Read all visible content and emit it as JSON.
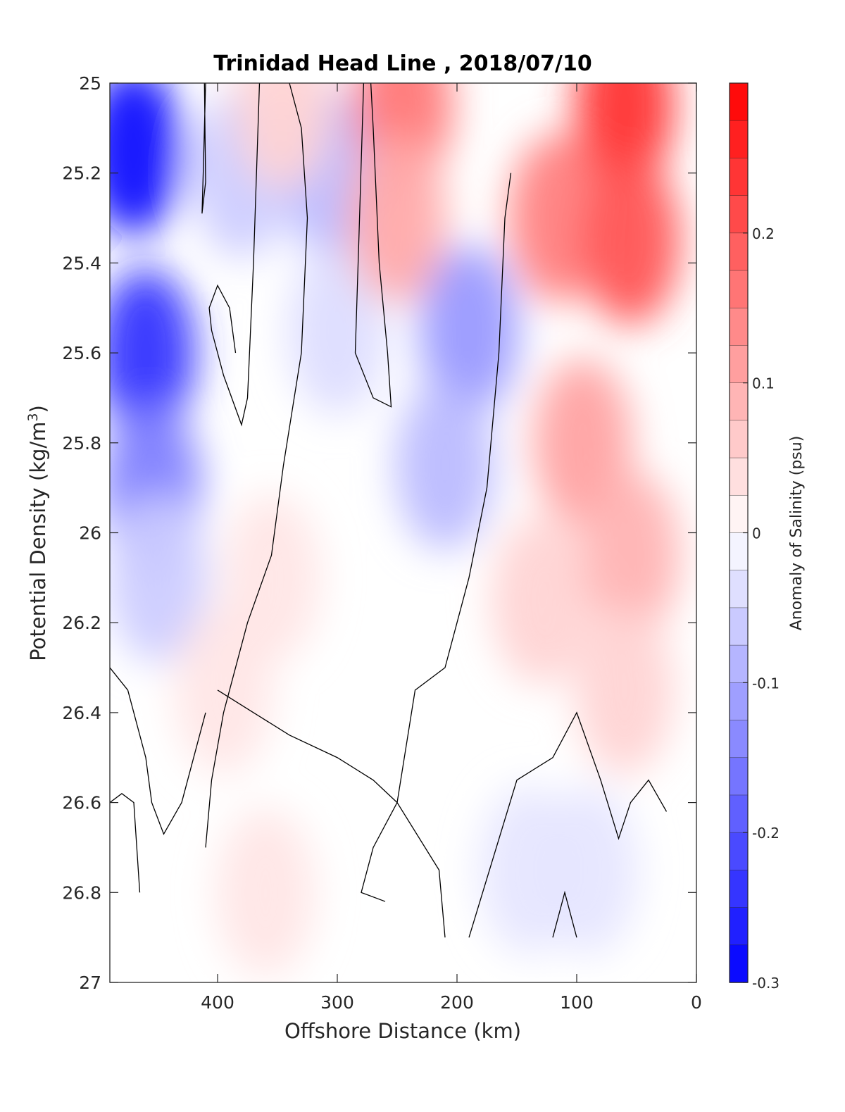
{
  "chart_data": {
    "type": "heatmap",
    "subtype": "filled-contour",
    "title": "Trinidad Head Line , 2018/07/10",
    "xlabel": "Offshore Distance (km)",
    "ylabel": "Potential Density (kg/m",
    "ylabel_sup": "3",
    "ylabel_close": ")",
    "colorbar_label": "Anomaly of Salinity (psu)",
    "xlim": [
      490,
      0
    ],
    "ylim": [
      25,
      27
    ],
    "y_inverted": true,
    "x_reversed": true,
    "xticks": [
      400,
      300,
      200,
      100,
      0
    ],
    "xtick_labels": [
      "400",
      "300",
      "200",
      "100",
      "0"
    ],
    "yticks": [
      25,
      25.2,
      25.4,
      25.6,
      25.8,
      26,
      26.2,
      26.4,
      26.6,
      26.8,
      27
    ],
    "ytick_labels": [
      "25",
      "25.2",
      "25.4",
      "25.6",
      "25.8",
      "26",
      "26.2",
      "26.4",
      "26.6",
      "26.8",
      "27"
    ],
    "colorbar": {
      "clim": [
        -0.3,
        0.3
      ],
      "ticks": [
        0.2,
        0.1,
        0,
        -0.1,
        -0.2,
        -0.3
      ],
      "tick_labels": [
        "0.2",
        "0.1",
        "0",
        "-0.1",
        "-0.2",
        "-0.3"
      ],
      "levels": 24,
      "colormap": "blue-white-red",
      "negative_color": "#0000ff",
      "positive_color": "#ff0000",
      "zero_color": "#ffffff"
    },
    "grid": false,
    "field": [
      {
        "x": 470,
        "y": 25.15,
        "value": -0.28
      },
      {
        "x": 460,
        "y": 25.6,
        "value": -0.24
      },
      {
        "x": 455,
        "y": 25.9,
        "value": -0.15
      },
      {
        "x": 450,
        "y": 26.1,
        "value": -0.06
      },
      {
        "x": 380,
        "y": 25.2,
        "value": -0.06
      },
      {
        "x": 305,
        "y": 25.2,
        "value": -0.08
      },
      {
        "x": 300,
        "y": 25.55,
        "value": -0.04
      },
      {
        "x": 190,
        "y": 25.55,
        "value": -0.12
      },
      {
        "x": 210,
        "y": 25.85,
        "value": -0.08
      },
      {
        "x": 140,
        "y": 26.75,
        "value": -0.03
      },
      {
        "x": 90,
        "y": 26.75,
        "value": -0.03
      },
      {
        "x": 345,
        "y": 25.05,
        "value": 0.05
      },
      {
        "x": 245,
        "y": 25.05,
        "value": 0.16
      },
      {
        "x": 250,
        "y": 25.3,
        "value": 0.1
      },
      {
        "x": 115,
        "y": 25.3,
        "value": 0.15
      },
      {
        "x": 60,
        "y": 25.05,
        "value": 0.24
      },
      {
        "x": 55,
        "y": 25.35,
        "value": 0.2
      },
      {
        "x": 95,
        "y": 25.8,
        "value": 0.11
      },
      {
        "x": 55,
        "y": 26.05,
        "value": 0.09
      },
      {
        "x": 130,
        "y": 26.15,
        "value": 0.05
      },
      {
        "x": 60,
        "y": 26.35,
        "value": 0.05
      },
      {
        "x": 355,
        "y": 26.1,
        "value": 0.03
      },
      {
        "x": 395,
        "y": 26.35,
        "value": 0.03
      },
      {
        "x": 360,
        "y": 26.8,
        "value": 0.03
      }
    ],
    "zero_contour_lines": [
      [
        [
          410,
          25
        ],
        [
          412,
          25.2
        ],
        [
          413,
          25.29
        ],
        [
          410,
          25.22
        ],
        [
          411,
          25.0
        ]
      ],
      [
        [
          278,
          25
        ],
        [
          282,
          25.35
        ],
        [
          285,
          25.6
        ],
        [
          270,
          25.7
        ],
        [
          255,
          25.72
        ],
        [
          258,
          25.6
        ],
        [
          265,
          25.4
        ],
        [
          270,
          25.1
        ],
        [
          272,
          25
        ]
      ],
      [
        [
          365,
          25
        ],
        [
          370,
          25.4
        ],
        [
          375,
          25.7
        ],
        [
          380,
          25.76
        ],
        [
          395,
          25.65
        ],
        [
          405,
          25.55
        ],
        [
          407,
          25.5
        ],
        [
          400,
          25.45
        ],
        [
          390,
          25.5
        ],
        [
          385,
          25.6
        ]
      ],
      [
        [
          340,
          25
        ],
        [
          330,
          25.1
        ],
        [
          325,
          25.3
        ],
        [
          330,
          25.6
        ],
        [
          345,
          25.85
        ],
        [
          355,
          26.05
        ],
        [
          375,
          26.2
        ],
        [
          395,
          26.4
        ],
        [
          405,
          26.55
        ],
        [
          410,
          26.7
        ]
      ],
      [
        [
          155,
          25.2
        ],
        [
          160,
          25.3
        ],
        [
          165,
          25.6
        ],
        [
          175,
          25.9
        ],
        [
          190,
          26.1
        ],
        [
          210,
          26.3
        ],
        [
          235,
          26.35
        ],
        [
          250,
          26.6
        ],
        [
          270,
          26.7
        ],
        [
          280,
          26.8
        ],
        [
          260,
          26.82
        ]
      ],
      [
        [
          210,
          26.9
        ],
        [
          215,
          26.75
        ],
        [
          250,
          26.6
        ],
        [
          270,
          26.55
        ],
        [
          300,
          26.5
        ],
        [
          340,
          26.45
        ],
        [
          370,
          26.4
        ],
        [
          400,
          26.35
        ]
      ],
      [
        [
          490,
          26.3
        ],
        [
          475,
          26.35
        ],
        [
          460,
          26.5
        ],
        [
          455,
          26.6
        ],
        [
          445,
          26.67
        ],
        [
          430,
          26.6
        ],
        [
          410,
          26.4
        ]
      ],
      [
        [
          490,
          26.6
        ],
        [
          480,
          26.58
        ],
        [
          470,
          26.6
        ],
        [
          465,
          26.8
        ]
      ],
      [
        [
          120,
          26.9
        ],
        [
          110,
          26.8
        ],
        [
          100,
          26.9
        ]
      ],
      [
        [
          190,
          26.9
        ],
        [
          150,
          26.55
        ],
        [
          120,
          26.5
        ],
        [
          100,
          26.4
        ],
        [
          80,
          26.55
        ],
        [
          65,
          26.68
        ],
        [
          55,
          26.6
        ],
        [
          40,
          26.55
        ],
        [
          25,
          26.62
        ]
      ]
    ]
  }
}
